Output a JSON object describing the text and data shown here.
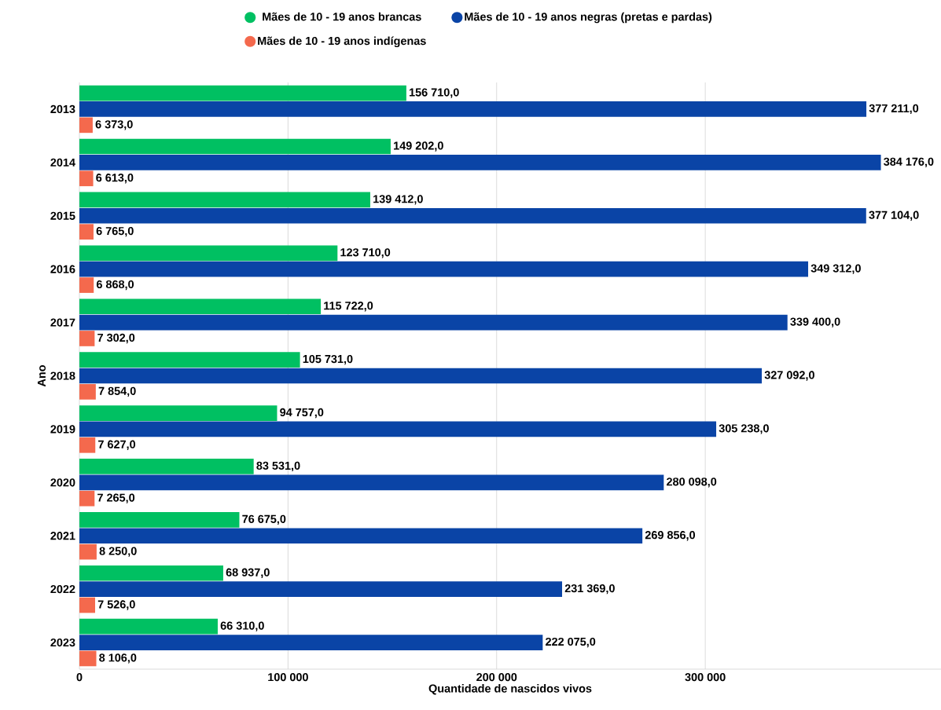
{
  "chart_data": {
    "type": "bar",
    "orientation": "horizontal",
    "xlabel": "Quantidade de nascidos vivos",
    "ylabel": "Ano",
    "categories": [
      "2013",
      "2014",
      "2015",
      "2016",
      "2017",
      "2018",
      "2019",
      "2020",
      "2021",
      "2022",
      "2023"
    ],
    "series": [
      {
        "name": "Mães de 10 - 19 anos brancas",
        "color": "#00c062",
        "values": [
          156710,
          149202,
          139412,
          123710,
          115722,
          105731,
          94757,
          83531,
          76675,
          68937,
          66310
        ],
        "value_labels": [
          "156 710,0",
          "149 202,0",
          "139 412,0",
          "123 710,0",
          "115 722,0",
          "105 731,0",
          "94 757,0",
          "83 531,0",
          "76 675,0",
          "68 937,0",
          "66 310,0"
        ]
      },
      {
        "name": "Mães de 10 - 19 anos negras (pretas e pardas)",
        "color": "#0a44a6",
        "values": [
          377211,
          384176,
          377104,
          349312,
          339400,
          327092,
          305238,
          280098,
          269856,
          231369,
          222075
        ],
        "value_labels": [
          "377 211,0",
          "384 176,0",
          "377 104,0",
          "349 312,0",
          "339 400,0",
          "327 092,0",
          "305 238,0",
          "280 098,0",
          "269 856,0",
          "231 369,0",
          "222 075,0"
        ]
      },
      {
        "name": "Mães de 10 - 19 anos indígenas",
        "color": "#f4694d",
        "values": [
          6373,
          6613,
          6765,
          6868,
          7302,
          7854,
          7627,
          7265,
          8250,
          7526,
          8106
        ],
        "value_labels": [
          "6 373,0",
          "6 613,0",
          "6 765,0",
          "6 868,0",
          "7 302,0",
          "7 854,0",
          "7 627,0",
          "7 265,0",
          "8 250,0",
          "7 526,0",
          "8 106,0"
        ]
      }
    ],
    "xlim": [
      0,
      413000
    ],
    "xticks": [
      0,
      {
        "value": 100000,
        "label": "100 000"
      },
      {
        "value": 200000,
        "label": "200 000"
      },
      {
        "value": 300000,
        "label": "300 000"
      }
    ],
    "grid": "x",
    "legend": "top"
  }
}
